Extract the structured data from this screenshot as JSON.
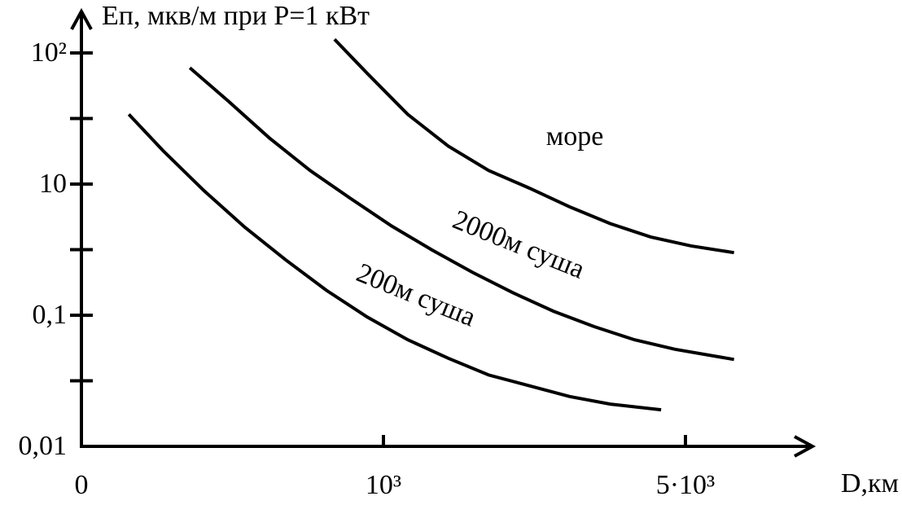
{
  "chart_data": {
    "type": "line",
    "title": "Eп, мкв/м при P=1 кВт",
    "x_label": "D,км",
    "log_y": true,
    "xlim": [
      0,
      6600
    ],
    "ylim": [
      0.01,
      200
    ],
    "xticks": [
      0,
      {
        "value": 1000,
        "label": "10³"
      },
      {
        "value": 5000,
        "label": "5·10³"
      }
    ],
    "yticks": [
      {
        "value": 0.01,
        "label": "0,01"
      },
      {
        "value": 0.1,
        "label": "0,1"
      },
      10,
      {
        "value": 100,
        "label": "10²"
      }
    ],
    "series": [
      {
        "name": "море",
        "color": "#000000",
        "x": [
          838,
          946,
          1322,
          1858,
          2394,
          2930,
          3466,
          4003,
          4539,
          5075,
          5643
        ],
        "values": [
          127,
          70,
          34,
          19.5,
          12.7,
          8.7,
          4.5,
          2.5,
          1.56,
          1.14,
          0.9
        ]
      },
      {
        "name": "2000м суша",
        "color": "#000000",
        "x": [
          359,
          486,
          622,
          757,
          892,
          1107,
          1643,
          2180,
          2716,
          3252,
          3788,
          4324,
          4861,
          5643
        ],
        "values": [
          77,
          43,
          22.5,
          12.7,
          6.0,
          2.3,
          0.99,
          0.45,
          0.22,
          0.115,
          0.082,
          0.065,
          0.055,
          0.046
        ]
      },
      {
        "name": "200м суша",
        "color": "#000000",
        "x": [
          157,
          270,
          405,
          541,
          676,
          811,
          946,
          1322,
          1858,
          2394,
          2930,
          3466,
          4003,
          4678
        ],
        "values": [
          34,
          18,
          8.0,
          2.2,
          0.7,
          0.24,
          0.097,
          0.065,
          0.047,
          0.035,
          0.029,
          0.024,
          0.021,
          0.019
        ]
      }
    ]
  }
}
